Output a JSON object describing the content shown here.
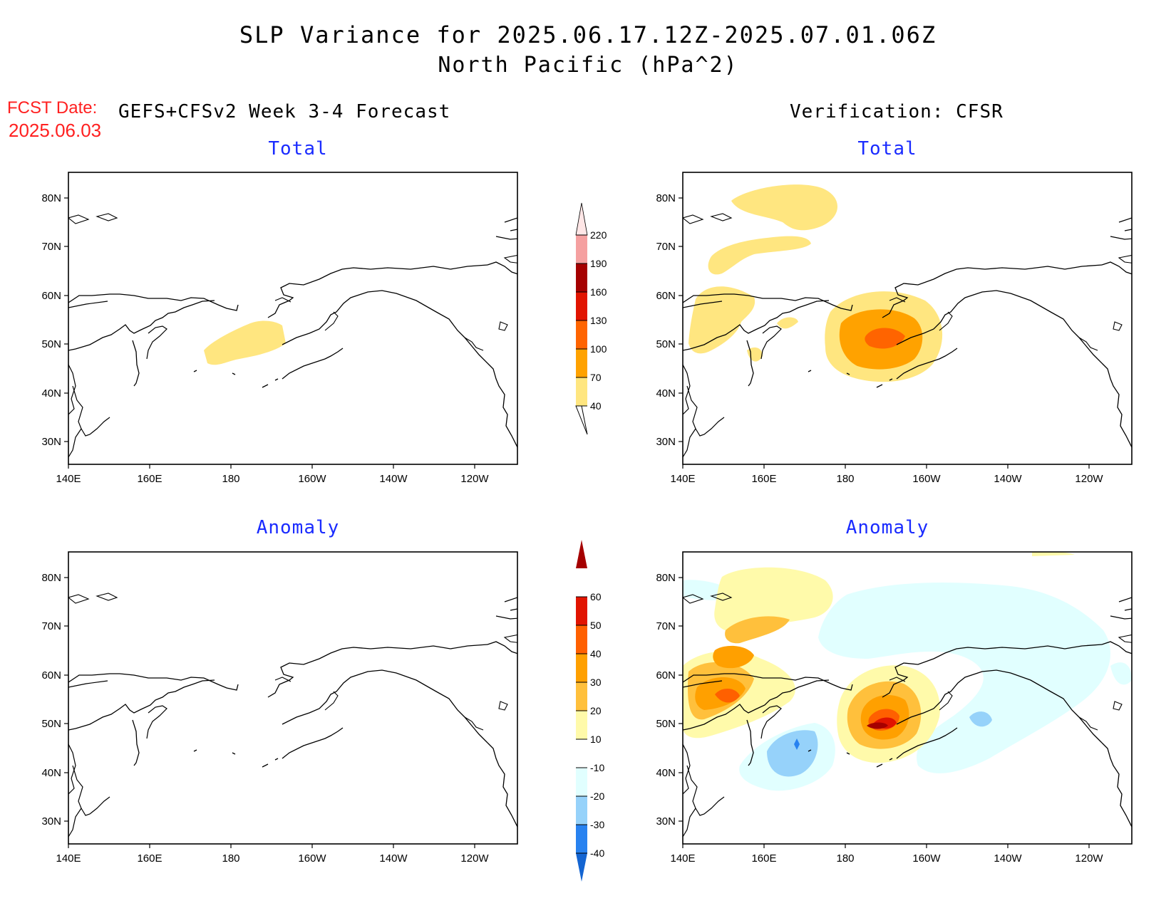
{
  "header": {
    "title_line1": "SLP Variance for 2025.06.17.12Z-2025.07.01.06Z",
    "title_line2": "North Pacific (hPa^2)",
    "fcst_label": "FCST Date:",
    "fcst_date": "2025.06.03",
    "left_heading": "GEFS+CFSv2 Week 3-4 Forecast",
    "right_heading": "Verification: CFSR"
  },
  "panels": {
    "top_left_title": "Total",
    "top_right_title": "Total",
    "bottom_left_title": "Anomaly",
    "bottom_right_title": "Anomaly"
  },
  "axes": {
    "lat_labels": [
      "80N",
      "70N",
      "60N",
      "50N",
      "40N",
      "30N"
    ],
    "lon_labels": [
      "140E",
      "160E",
      "180",
      "160W",
      "140W",
      "120W"
    ]
  },
  "colorbar_total": {
    "levels": [
      "40",
      "70",
      "100",
      "130",
      "160",
      "190",
      "220"
    ],
    "colors": [
      "#ffe680",
      "#ffa200",
      "#ff6400",
      "#e11400",
      "#a50000",
      "#f5a0a0",
      "#ffe6e6"
    ]
  },
  "colorbar_anomaly": {
    "levels": [
      "-40",
      "-30",
      "-20",
      "-10",
      "10",
      "20",
      "30",
      "40",
      "50",
      "60"
    ],
    "colors": [
      "#1465d2",
      "#2882f0",
      "#96d2fa",
      "#e1ffff",
      "#ffffff",
      "#fffaaa",
      "#ffc03c",
      "#ffa000",
      "#ff6000",
      "#e11400",
      "#a50000"
    ]
  }
}
